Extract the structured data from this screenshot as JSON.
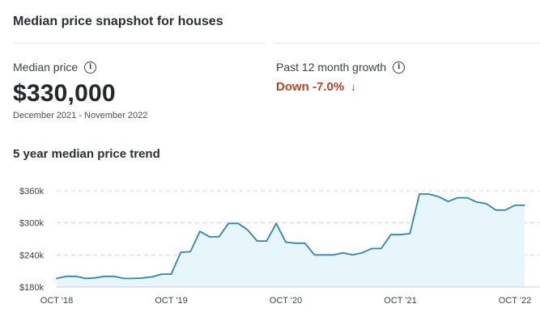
{
  "snapshot": {
    "title": "Median price snapshot for houses",
    "median_label": "Median price",
    "median_value": "$330,000",
    "median_period": "December 2021 - November 2022",
    "growth_label": "Past 12 month growth",
    "growth_value": "Down -7.0%",
    "growth_color": "#b3472a"
  },
  "trend": {
    "title": "5 year median price trend"
  },
  "chart_data": {
    "type": "area",
    "title": "5 year median price trend",
    "xlabel": "",
    "ylabel": "",
    "yticks": [
      180000,
      240000,
      300000,
      360000
    ],
    "ytick_labels": [
      "$180k",
      "$240k",
      "$300k",
      "$360k"
    ],
    "xticks": [
      "2018-10",
      "2019-10",
      "2020-10",
      "2021-10",
      "2022-10"
    ],
    "xtick_labels": [
      "OCT '18",
      "OCT '19",
      "OCT '20",
      "OCT '21",
      "OCT '22"
    ],
    "ylim": [
      180000,
      360000
    ],
    "grid": true,
    "line_color": "#2a86c1",
    "fill_color": "#e6f6fb",
    "series": [
      {
        "x": [
          "2018-10",
          "2018-11",
          "2018-12",
          "2019-01",
          "2019-02",
          "2019-03",
          "2019-04",
          "2019-05",
          "2019-06",
          "2019-07",
          "2019-08",
          "2019-09",
          "2019-10",
          "2019-11",
          "2019-12",
          "2020-01",
          "2020-02",
          "2020-03",
          "2020-04",
          "2020-05",
          "2020-06",
          "2020-07",
          "2020-08",
          "2020-09",
          "2020-10",
          "2020-11",
          "2020-12",
          "2021-01",
          "2021-02",
          "2021-03",
          "2021-04",
          "2021-05",
          "2021-06",
          "2021-07",
          "2021-08",
          "2021-09",
          "2021-10",
          "2021-11",
          "2021-12",
          "2022-01",
          "2022-02",
          "2022-03",
          "2022-04",
          "2022-05",
          "2022-06",
          "2022-07",
          "2022-08",
          "2022-09",
          "2022-10",
          "2022-11"
        ],
        "values": [
          196000,
          200000,
          200000,
          196000,
          197000,
          200000,
          200000,
          196000,
          196000,
          197000,
          199000,
          204000,
          204000,
          245000,
          246000,
          284000,
          274000,
          274000,
          299000,
          299000,
          287000,
          266000,
          266000,
          299000,
          264000,
          262000,
          262000,
          240000,
          240000,
          240000,
          244000,
          240000,
          244000,
          252000,
          252000,
          278000,
          278000,
          280000,
          354000,
          354000,
          349000,
          340000,
          347000,
          347000,
          339000,
          336000,
          324000,
          324000,
          333000,
          333000
        ]
      }
    ]
  }
}
